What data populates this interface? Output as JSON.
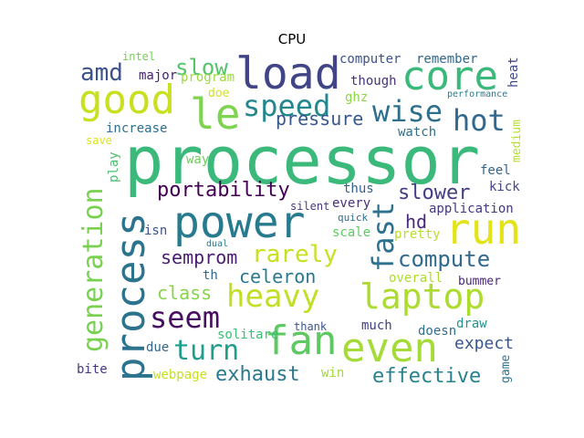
{
  "title": "CPU",
  "palette": {
    "background": "#ffffff",
    "title": "#000000"
  },
  "words": [
    {
      "text": "processor",
      "color": "#3ab97a"
    },
    {
      "text": "power",
      "color": "#287b8e"
    },
    {
      "text": "load",
      "color": "#414487"
    },
    {
      "text": "core",
      "color": "#3ab97a"
    },
    {
      "text": "good",
      "color": "#c8e020"
    },
    {
      "text": "le",
      "color": "#7ed34f"
    },
    {
      "text": "run",
      "color": "#e2e418"
    },
    {
      "text": "heavy",
      "color": "#c2df23"
    },
    {
      "text": "laptop",
      "color": "#addc30"
    },
    {
      "text": "fan",
      "color": "#5ec962"
    },
    {
      "text": "even",
      "color": "#a5db36"
    },
    {
      "text": "process",
      "color": "#2c738e"
    },
    {
      "text": "generation",
      "color": "#7ad151"
    },
    {
      "text": "speed",
      "color": "#23888e"
    },
    {
      "text": "wise",
      "color": "#2e6f8e"
    },
    {
      "text": "hot",
      "color": "#31688e"
    },
    {
      "text": "amd",
      "color": "#3b528b"
    },
    {
      "text": "slow",
      "color": "#52c569"
    },
    {
      "text": "pressure",
      "color": "#38588c"
    },
    {
      "text": "portability",
      "color": "#440154"
    },
    {
      "text": "slower",
      "color": "#433e85"
    },
    {
      "text": "fast",
      "color": "#2d718e"
    },
    {
      "text": "rarely",
      "color": "#c8e020"
    },
    {
      "text": "compute",
      "color": "#306a8e"
    },
    {
      "text": "semprom",
      "color": "#481d6f"
    },
    {
      "text": "celeron",
      "color": "#2a788e"
    },
    {
      "text": "seem",
      "color": "#470e61"
    },
    {
      "text": "class",
      "color": "#86d549"
    },
    {
      "text": "turn",
      "color": "#1f9e89"
    },
    {
      "text": "exhaust",
      "color": "#2a788e"
    },
    {
      "text": "effective",
      "color": "#26828e"
    },
    {
      "text": "hd",
      "color": "#482878"
    },
    {
      "text": "expect",
      "color": "#39568c"
    },
    {
      "text": "intel",
      "color": "#73d056"
    },
    {
      "text": "major",
      "color": "#482173"
    },
    {
      "text": "program",
      "color": "#9bd93c"
    },
    {
      "text": "computer",
      "color": "#3b528b"
    },
    {
      "text": "remember",
      "color": "#31688e"
    },
    {
      "text": "though",
      "color": "#46327e"
    },
    {
      "text": "heat",
      "color": "#3e4989"
    },
    {
      "text": "doe",
      "color": "#d2e21b"
    },
    {
      "text": "ghz",
      "color": "#8bd646"
    },
    {
      "text": "performance",
      "color": "#297a8e"
    },
    {
      "text": "increase",
      "color": "#2e6e8e"
    },
    {
      "text": "watch",
      "color": "#2d708e"
    },
    {
      "text": "save",
      "color": "#dde318"
    },
    {
      "text": "play",
      "color": "#4ac16d"
    },
    {
      "text": "way",
      "color": "#6ccd5a"
    },
    {
      "text": "medium",
      "color": "#b5de2b"
    },
    {
      "text": "feel",
      "color": "#32658e"
    },
    {
      "text": "kick",
      "color": "#414487"
    },
    {
      "text": "thus",
      "color": "#33638d"
    },
    {
      "text": "every",
      "color": "#472d7b"
    },
    {
      "text": "silent",
      "color": "#443983"
    },
    {
      "text": "application",
      "color": "#453781"
    },
    {
      "text": "quick",
      "color": "#2f6c8e"
    },
    {
      "text": "isn",
      "color": "#3b528b"
    },
    {
      "text": "scale",
      "color": "#5ec962"
    },
    {
      "text": "pretty",
      "color": "#b8de29"
    },
    {
      "text": "dual",
      "color": "#2a788e"
    },
    {
      "text": "th",
      "color": "#31688e"
    },
    {
      "text": "overall",
      "color": "#addc30"
    },
    {
      "text": "bummer",
      "color": "#482878"
    },
    {
      "text": "solitare",
      "color": "#3dbc74"
    },
    {
      "text": "thank",
      "color": "#3b528b"
    },
    {
      "text": "much",
      "color": "#423f85"
    },
    {
      "text": "doesn",
      "color": "#2e6f8e"
    },
    {
      "text": "draw",
      "color": "#21918c"
    },
    {
      "text": "due",
      "color": "#31688e"
    },
    {
      "text": "game",
      "color": "#2c738e"
    },
    {
      "text": "bite",
      "color": "#453882"
    },
    {
      "text": "webpage",
      "color": "#c8e020"
    },
    {
      "text": "win",
      "color": "#9dd93b"
    }
  ]
}
